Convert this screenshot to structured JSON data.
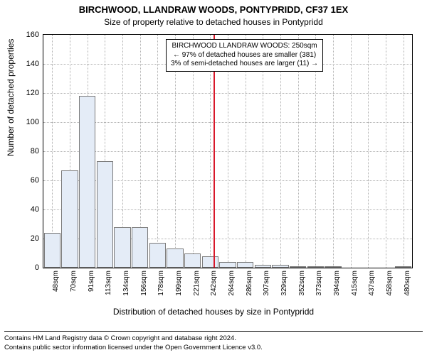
{
  "title_line1": "BIRCHWOOD, LLANDRAW WOODS, PONTYPRIDD, CF37 1EX",
  "title_line2": "Size of property relative to detached houses in Pontypridd",
  "ylabel": "Number of detached properties",
  "xlabel": "Distribution of detached houses by size in Pontypridd",
  "footer_line1": "Contains HM Land Registry data © Crown copyright and database right 2024.",
  "footer_line2": "Contains public sector information licensed under the Open Government Licence v3.0.",
  "chart": {
    "type": "histogram",
    "ylim": [
      0,
      160
    ],
    "yticks": [
      0,
      20,
      40,
      60,
      80,
      100,
      120,
      140,
      160
    ],
    "xtick_labels": [
      "48sqm",
      "70sqm",
      "91sqm",
      "113sqm",
      "134sqm",
      "156sqm",
      "178sqm",
      "199sqm",
      "221sqm",
      "242sqm",
      "264sqm",
      "286sqm",
      "307sqm",
      "329sqm",
      "352sqm",
      "373sqm",
      "394sqm",
      "415sqm",
      "437sqm",
      "458sqm",
      "480sqm"
    ],
    "values": [
      24,
      67,
      118,
      73,
      28,
      28,
      17,
      13,
      10,
      8,
      4,
      4,
      2,
      2,
      1,
      1,
      1,
      0,
      0,
      0,
      1
    ],
    "bar_fill": "#e4ecf7",
    "bar_border": "#7a7a7a",
    "grid_color": "#b0b0b0",
    "background": "#ffffff",
    "refline_color": "#d8182a",
    "refline_x_index_after": 9,
    "annotation": {
      "line1": "BIRCHWOOD LLANDRAW WOODS: 250sqm",
      "line2": "← 97% of detached houses are smaller (381)",
      "line3": "3% of semi-detached houses are larger (11) →"
    }
  }
}
